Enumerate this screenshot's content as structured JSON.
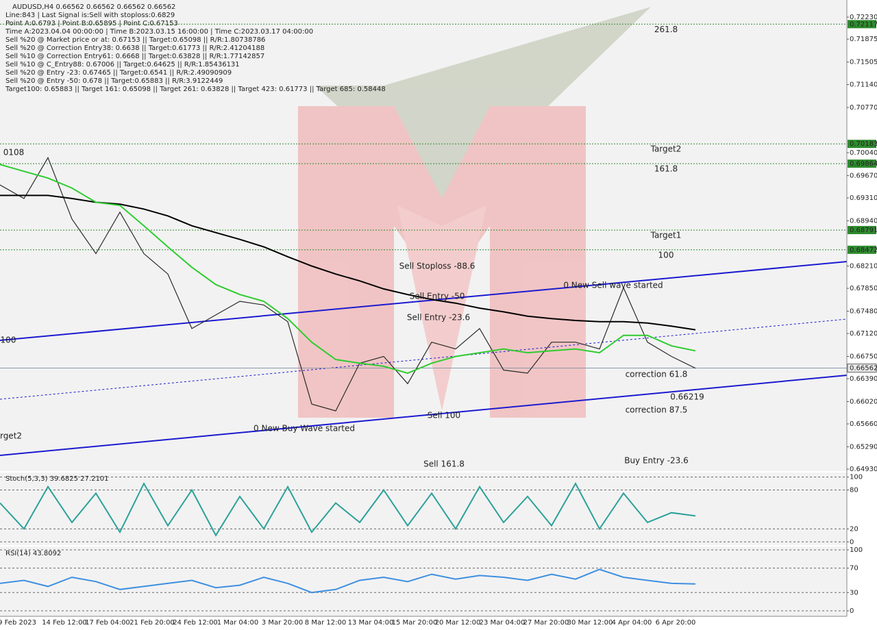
{
  "info_lines": [
    "Line:843 | Last Signal is:Sell with stoploss:0.6829",
    "Point A:0.6793 | Point B:0.65895 | Point C:0.67153",
    "Time A:2023.04.04 00:00:00 | Time B:2023.03.15 16:00:00 | Time C:2023.03.17 04:00:00",
    "Sell %20 @ Market price or at: 0.67153 || Target:0.65098 || R/R:1.80738786",
    "Sell %20 @ Correction Entry38: 0.6638 || Target:0.61773 || R/R:2.41204188",
    "Sell %10 @ Correction Entry61: 0.6668 || Target:0.63828 || R/R:1.77142857",
    "Sell %10 @ C_Entry88: 0.67006 || Target:0.64625 || R/R:1.85436131",
    "Sell %20 @ Entry -23: 0.67465 || Target:0.6541 || R/R:2.49090909",
    "Sell %20 @ Entry -50: 0.678 || Target:0.65883 || R/R:3.9122449",
    "Target100: 0.65883 || Target 161: 0.65098 || Target 261: 0.63828 || Target 423: 0.61773 || Target 685: 0.58448"
  ],
  "time_labels": [
    "9 Feb 2023",
    "14 Feb 12:00",
    "17 Feb 04:00",
    "21 Feb 20:00",
    "24 Feb 12:00",
    "1 Mar 04:00",
    "3 Mar 20:00",
    "8 Mar 12:00",
    "13 Mar 04:00",
    "15 Mar 20:00",
    "20 Mar 12:00",
    "23 Mar 04:00",
    "27 Mar 20:00",
    "30 Mar 12:00",
    "4 Apr 04:00",
    "6 Apr 20:00"
  ],
  "chart_data": [
    {
      "type": "line",
      "title": "AUDUSD,H4  0.66562 0.66562 0.66562 0.66562",
      "ylim": [
        0.64897,
        0.72507
      ],
      "yticks": [
        {
          "value": 0.7223,
          "label": "0.72230"
        },
        0.71875,
        0.71505,
        {
          "value": 0.7114,
          "label": "0.71140"
        },
        {
          "value": 0.7077,
          "label": "0.70770"
        },
        {
          "value": 0.7004,
          "label": "0.70040"
        },
        {
          "value": 0.6967,
          "label": "0.69670"
        },
        {
          "value": 0.6931,
          "label": "0.69310"
        },
        {
          "value": 0.6894,
          "label": "0.68940"
        },
        {
          "value": 0.6821,
          "label": "0.68210"
        },
        {
          "value": 0.6785,
          "label": "0.67850"
        },
        {
          "value": 0.6748,
          "label": "0.67480"
        },
        {
          "value": 0.6712,
          "label": "0.67120"
        },
        {
          "value": 0.6675,
          "label": "0.66750"
        },
        {
          "value": 0.6639,
          "label": "0.66390"
        },
        {
          "value": 0.6602,
          "label": "0.66020"
        },
        {
          "value": 0.6566,
          "label": "0.65660"
        },
        {
          "value": 0.6529,
          "label": "0.65290"
        },
        {
          "value": 0.6493,
          "label": "0.64930"
        }
      ],
      "grid": false,
      "series": [
        {
          "color": "#2a2a2a",
          "values": [
            0.6952,
            0.693,
            0.6996,
            0.6897,
            0.6841,
            0.6908,
            0.6841,
            0.6808,
            0.672,
            0.6742,
            0.6764,
            0.6758,
            0.6731,
            0.6598,
            0.6587,
            0.6664,
            0.6675,
            0.6631,
            0.6698,
            0.6687,
            0.672,
            0.6653,
            0.6648,
            0.6698,
            0.6698,
            0.6687,
            0.6786,
            0.6698,
            0.6675,
            0.6656
          ]
        },
        {
          "color": "#000000",
          "values": [
            0.6935,
            0.6935,
            0.6935,
            0.693,
            0.6924,
            0.6921,
            0.6913,
            0.6902,
            0.6886,
            0.6875,
            0.6864,
            0.6852,
            0.6836,
            0.6821,
            0.6808,
            0.6797,
            0.6784,
            0.6775,
            0.6767,
            0.6761,
            0.6753,
            0.6747,
            0.674,
            0.6736,
            0.6733,
            0.6731,
            0.6731,
            0.6729,
            0.6724,
            0.6718
          ]
        },
        {
          "color": "#2ecc2e",
          "values": [
            0.6985,
            0.6974,
            0.6963,
            0.6947,
            0.6924,
            0.6919,
            0.6886,
            0.6852,
            0.6819,
            0.6791,
            0.6775,
            0.6764,
            0.6736,
            0.6698,
            0.667,
            0.6664,
            0.6659,
            0.6648,
            0.6664,
            0.6675,
            0.6681,
            0.6687,
            0.6681,
            0.6684,
            0.6687,
            0.6681,
            0.6709,
            0.6709,
            0.6692,
            0.6684
          ]
        }
      ],
      "levels": [
        {
          "name": "261.8",
          "value": 0.72117,
          "color": "#2e8b2e"
        },
        {
          "name": "Target2",
          "value": 0.70183,
          "color": "#2e8b2e"
        },
        {
          "name": "161.8",
          "value": 0.69864,
          "color": "#2e8b2e"
        },
        {
          "name": "Target1",
          "value": 0.68791,
          "color": "#2e8b2e"
        },
        {
          "name": "100",
          "value": 0.68472,
          "color": "#2e8b2e"
        }
      ],
      "current_price": 0.66562,
      "annotations": [
        "Sell Stoploss -88.6",
        "Sell Entry -50",
        "Sell Entry -23.6",
        "Sell 100",
        "Sell 161.8",
        "0 New Sell wave started",
        "0 New Buy Wave started",
        "correction 61.8",
        "correction 87.5",
        "Buy Entry -23.6",
        "0108",
        "100",
        "rget2",
        "0.66219"
      ]
    },
    {
      "type": "line",
      "title": "Stoch(5,3,3) 39.6825 27.2101",
      "ylim": [
        -5,
        107
      ],
      "yticks": [
        100,
        80,
        20,
        0
      ],
      "grid": true,
      "series": [
        {
          "color": "#2aa198",
          "values": [
            60,
            20,
            85,
            30,
            75,
            15,
            90,
            25,
            80,
            10,
            70,
            20,
            85,
            15,
            60,
            30,
            80,
            25,
            75,
            20,
            85,
            30,
            70,
            25,
            90,
            20,
            75,
            30,
            45,
            40
          ]
        }
      ]
    },
    {
      "type": "line",
      "title": "RSI(14) 43.8092",
      "ylim": [
        -9,
        105.6
      ],
      "yticks": [
        100,
        70,
        30,
        0
      ],
      "grid": true,
      "series": [
        {
          "color": "#3d8fe0",
          "values": [
            45,
            50,
            40,
            55,
            48,
            35,
            40,
            45,
            50,
            38,
            42,
            55,
            45,
            30,
            35,
            50,
            55,
            48,
            60,
            52,
            58,
            55,
            50,
            60,
            52,
            68,
            55,
            50,
            45,
            44
          ]
        }
      ]
    }
  ]
}
